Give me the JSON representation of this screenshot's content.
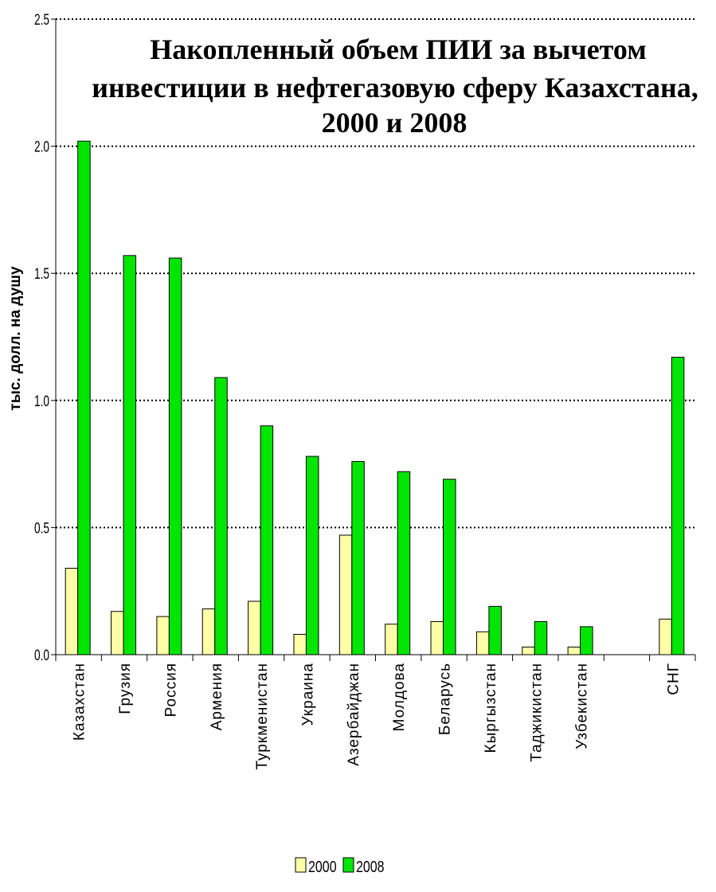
{
  "chart_data": {
    "type": "bar",
    "title_lines": [
      "Накопленный объем ПИИ за вычетом",
      "инвестиции в нефтегазовую сферу Казахстана,",
      "2000 и 2008"
    ],
    "ylabel": "тыс. долл. на душу",
    "ylim": [
      0,
      2.5
    ],
    "yticks": [
      "0.0",
      "0.5",
      "1.0",
      "1.5",
      "2.0",
      "2.5"
    ],
    "grid": "dotted horizontal",
    "categories": [
      "Казахстан",
      "Грузия",
      "Россия",
      "Армения",
      "Туркменистан",
      "Украина",
      "Азербайджан",
      "Молдова",
      "Беларусь",
      "Кыргызстан",
      "Таджикистан",
      "Узбекистан",
      "",
      "СНГ"
    ],
    "series": [
      {
        "name": "2000",
        "color": "#ffffa8",
        "values": [
          0.34,
          0.17,
          0.15,
          0.18,
          0.21,
          0.08,
          0.47,
          0.12,
          0.13,
          0.09,
          0.03,
          0.03,
          null,
          0.14
        ]
      },
      {
        "name": "2008",
        "color": "#00e600",
        "values": [
          2.02,
          1.57,
          1.56,
          1.09,
          0.9,
          0.78,
          0.76,
          0.72,
          0.69,
          0.19,
          0.13,
          0.11,
          null,
          1.17
        ]
      }
    ],
    "legend_position": "bottom-center"
  }
}
